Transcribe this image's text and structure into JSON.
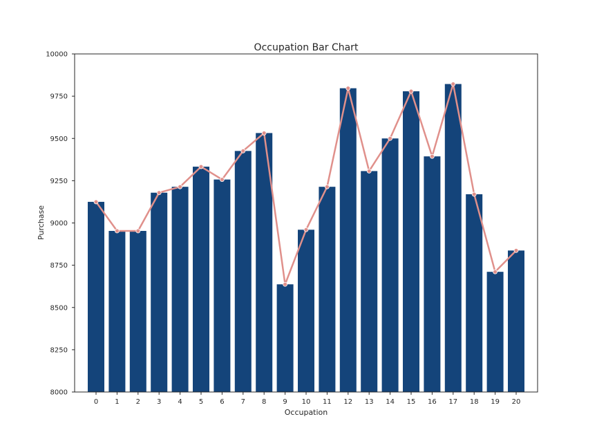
{
  "chart_data": {
    "type": "bar",
    "title": "Occupation Bar Chart",
    "xlabel": "Occupation",
    "ylabel": "Purchase",
    "categories": [
      "0",
      "1",
      "2",
      "3",
      "4",
      "5",
      "6",
      "7",
      "8",
      "9",
      "10",
      "11",
      "12",
      "13",
      "14",
      "15",
      "16",
      "17",
      "18",
      "19",
      "20"
    ],
    "values": [
      9125,
      8953,
      8953,
      9179,
      9214,
      9333,
      9257,
      9426,
      9532,
      8637,
      8960,
      9214,
      9797,
      9307,
      9500,
      9779,
      9394,
      9822,
      9170,
      8711,
      8837
    ],
    "line_values": [
      9125,
      8953,
      8953,
      9179,
      9214,
      9333,
      9257,
      9426,
      9532,
      8637,
      8960,
      9214,
      9797,
      9307,
      9500,
      9779,
      9394,
      9822,
      9170,
      8711,
      8837
    ],
    "ylim": [
      8000,
      10000
    ],
    "yticks": [
      "8000",
      "8250",
      "8500",
      "8750",
      "9000",
      "9250",
      "9500",
      "9750",
      "10000"
    ],
    "grid": false,
    "colors": {
      "bar": "#14447a",
      "line": "#e0908b",
      "frame": "#262626"
    }
  }
}
